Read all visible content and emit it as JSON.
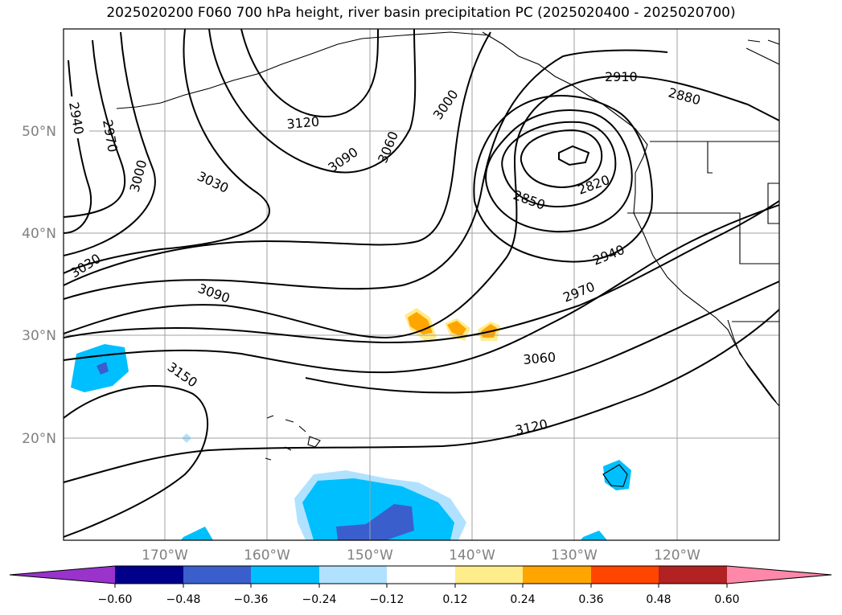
{
  "title": "2025020200 F060 700 hPa height, river basin precipitation PC (2025020400 - 2025020700)",
  "map": {
    "lat_labels": [
      "50°N",
      "40°N",
      "30°N",
      "20°N"
    ],
    "lon_labels": [
      "170°W",
      "160°W",
      "150°W",
      "140°W",
      "130°W",
      "120°W"
    ],
    "contour_labels": [
      "2940",
      "2970",
      "3000",
      "3030",
      "3120",
      "3090",
      "3060",
      "3000",
      "2910",
      "2880",
      "2850",
      "2820",
      "3030",
      "3090",
      "2940",
      "2970",
      "3150",
      "3060",
      "3120"
    ],
    "contour_color": "#000000",
    "gridline_color": "#a0a0a0"
  },
  "colorbar": {
    "colors": [
      "#9933cc",
      "#00008b",
      "#3a5fcd",
      "#00bfff",
      "#b0e2ff",
      "#ffffff",
      "#ffec8b",
      "#ffa500",
      "#ff4500",
      "#b22222",
      "#ff88aa"
    ],
    "tick_labels": [
      "−0.60",
      "−0.48",
      "−0.36",
      "−0.24",
      "−0.12",
      "0.12",
      "0.24",
      "0.36",
      "0.48",
      "0.60"
    ]
  }
}
